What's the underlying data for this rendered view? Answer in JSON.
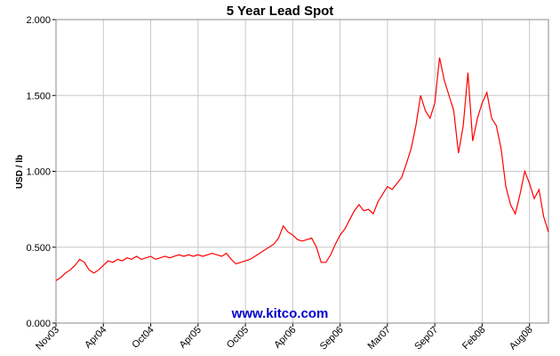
{
  "chart_data": {
    "type": "line",
    "title": "5 Year Lead Spot",
    "y_label": "USD / lb",
    "watermark": "www.kitco.com",
    "categories": [
      "Nov03",
      null,
      null,
      null,
      null,
      null,
      null,
      null,
      null,
      null,
      "Apr04",
      null,
      null,
      null,
      null,
      null,
      null,
      null,
      null,
      null,
      "Oct04",
      null,
      null,
      null,
      null,
      null,
      null,
      null,
      null,
      null,
      "Apr05",
      null,
      null,
      null,
      null,
      null,
      null,
      null,
      null,
      null,
      "Oct05",
      null,
      null,
      null,
      null,
      null,
      null,
      null,
      null,
      null,
      "Apr06",
      null,
      null,
      null,
      null,
      null,
      null,
      null,
      null,
      null,
      "Sep06",
      null,
      null,
      null,
      null,
      null,
      null,
      null,
      null,
      null,
      "Mar07",
      null,
      null,
      null,
      null,
      null,
      null,
      null,
      null,
      null,
      "Sep07",
      null,
      null,
      null,
      null,
      null,
      null,
      null,
      null,
      null,
      "Feb08",
      null,
      null,
      null,
      null,
      null,
      null,
      null,
      null,
      null,
      "Aug08",
      null,
      null,
      null,
      null
    ],
    "series": [
      {
        "name": "Lead",
        "color": "#ff0000",
        "values": [
          0.28,
          0.3,
          0.33,
          0.35,
          0.38,
          0.42,
          0.4,
          0.35,
          0.33,
          0.35,
          0.38,
          0.41,
          0.4,
          0.42,
          0.41,
          0.43,
          0.42,
          0.44,
          0.42,
          0.43,
          0.44,
          0.42,
          0.43,
          0.44,
          0.43,
          0.44,
          0.45,
          0.44,
          0.45,
          0.44,
          0.45,
          0.44,
          0.45,
          0.46,
          0.45,
          0.44,
          0.46,
          0.42,
          0.39,
          0.4,
          0.41,
          0.42,
          0.44,
          0.46,
          0.48,
          0.5,
          0.52,
          0.56,
          0.64,
          0.6,
          0.58,
          0.55,
          0.54,
          0.55,
          0.56,
          0.5,
          0.4,
          0.4,
          0.45,
          0.52,
          0.58,
          0.62,
          0.68,
          0.74,
          0.78,
          0.74,
          0.75,
          0.72,
          0.8,
          0.85,
          0.9,
          0.88,
          0.92,
          0.96,
          1.05,
          1.15,
          1.3,
          1.5,
          1.4,
          1.35,
          1.45,
          1.75,
          1.6,
          1.5,
          1.4,
          1.12,
          1.3,
          1.65,
          1.2,
          1.35,
          1.45,
          1.52,
          1.35,
          1.3,
          1.15,
          0.9,
          0.78,
          0.72,
          0.85,
          1.0,
          0.92,
          0.82,
          0.88,
          0.7,
          0.6
        ]
      }
    ],
    "ylim": [
      0,
      2
    ],
    "yticks": [
      {
        "value": 0,
        "label": "0.000"
      },
      {
        "value": 0.5,
        "label": "0.500"
      },
      {
        "value": 1,
        "label": "1.000"
      },
      {
        "value": 1.5,
        "label": "1.500"
      },
      {
        "value": 2,
        "label": "2.000"
      }
    ],
    "grid": true
  }
}
